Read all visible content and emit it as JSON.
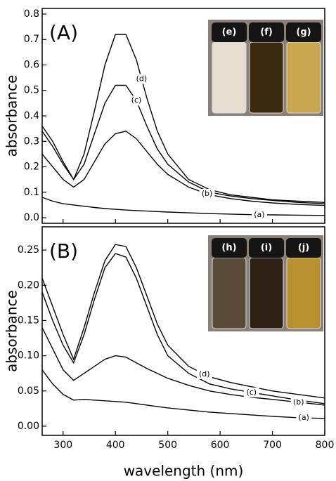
{
  "chart_data": [
    {
      "type": "line",
      "panel_label": "(A)",
      "ylabel": "absorbance",
      "x": [
        260,
        280,
        300,
        320,
        340,
        360,
        380,
        400,
        420,
        440,
        460,
        480,
        500,
        540,
        580,
        620,
        660,
        700,
        750,
        800
      ],
      "xlim": [
        260,
        800
      ],
      "xticks": [
        300,
        400,
        500,
        600,
        700,
        800
      ],
      "ylim": [
        -0.022,
        0.822
      ],
      "yticks": [
        {
          "value": 0,
          "label": "0.0"
        },
        {
          "value": 0.1,
          "label": "0.1"
        },
        {
          "value": 0.2,
          "label": "0.2"
        },
        {
          "value": 0.3,
          "label": "0.3"
        },
        {
          "value": 0.4,
          "label": "0.4"
        },
        {
          "value": 0.5,
          "label": "0.5"
        },
        {
          "value": 0.6,
          "label": "0.6"
        },
        {
          "value": 0.7,
          "label": "0.7"
        },
        {
          "value": 0.8,
          "label": "0.8"
        }
      ],
      "series": [
        {
          "name": "(a)",
          "color": "#000000",
          "values": [
            0.08,
            0.065,
            0.055,
            0.05,
            0.045,
            0.04,
            0.036,
            0.033,
            0.03,
            0.028,
            0.026,
            0.024,
            0.022,
            0.019,
            0.016,
            0.014,
            0.012,
            0.011,
            0.01,
            0.009
          ]
        },
        {
          "name": "(b)",
          "color": "#000000",
          "values": [
            0.25,
            0.2,
            0.15,
            0.12,
            0.15,
            0.22,
            0.29,
            0.33,
            0.34,
            0.31,
            0.26,
            0.21,
            0.17,
            0.12,
            0.09,
            0.075,
            0.065,
            0.058,
            0.052,
            0.048
          ]
        },
        {
          "name": "(c)",
          "color": "#000000",
          "values": [
            0.34,
            0.28,
            0.21,
            0.15,
            0.21,
            0.33,
            0.45,
            0.52,
            0.52,
            0.46,
            0.36,
            0.27,
            0.21,
            0.14,
            0.1,
            0.085,
            0.075,
            0.068,
            0.06,
            0.055
          ]
        },
        {
          "name": "(d)",
          "color": "#000000",
          "values": [
            0.36,
            0.3,
            0.22,
            0.15,
            0.25,
            0.42,
            0.6,
            0.72,
            0.72,
            0.62,
            0.47,
            0.34,
            0.25,
            0.15,
            0.11,
            0.09,
            0.08,
            0.07,
            0.065,
            0.06
          ]
        }
      ],
      "inset_labels": [
        "(e)",
        "(f)",
        "(g)"
      ]
    },
    {
      "type": "line",
      "panel_label": "(B)",
      "ylabel": "absorbance",
      "xlabel": "wavelength (nm)",
      "x": [
        260,
        280,
        300,
        320,
        340,
        360,
        380,
        400,
        420,
        440,
        460,
        480,
        500,
        540,
        580,
        620,
        660,
        700,
        750,
        800
      ],
      "xlim": [
        260,
        800
      ],
      "xticks": [
        300,
        400,
        500,
        600,
        700,
        800
      ],
      "ylim": [
        -0.013,
        0.283
      ],
      "yticks": [
        {
          "value": 0,
          "label": "0.00"
        },
        {
          "value": 0.05,
          "label": "0.05"
        },
        {
          "value": 0.1,
          "label": "0.10"
        },
        {
          "value": 0.15,
          "label": "0.15"
        },
        {
          "value": 0.2,
          "label": "0.20"
        },
        {
          "value": 0.25,
          "label": "0.25"
        }
      ],
      "series": [
        {
          "name": "(a)",
          "color": "#000000",
          "values": [
            0.08,
            0.06,
            0.045,
            0.037,
            0.038,
            0.037,
            0.036,
            0.035,
            0.034,
            0.032,
            0.03,
            0.028,
            0.026,
            0.023,
            0.02,
            0.018,
            0.016,
            0.014,
            0.012,
            0.011
          ]
        },
        {
          "name": "(b)",
          "color": "#000000",
          "values": [
            0.14,
            0.11,
            0.08,
            0.065,
            0.075,
            0.085,
            0.095,
            0.1,
            0.098,
            0.09,
            0.082,
            0.075,
            0.068,
            0.058,
            0.05,
            0.045,
            0.041,
            0.038,
            0.034,
            0.03
          ]
        },
        {
          "name": "(c)",
          "color": "#000000",
          "values": [
            0.19,
            0.15,
            0.115,
            0.09,
            0.13,
            0.18,
            0.225,
            0.245,
            0.24,
            0.21,
            0.17,
            0.13,
            0.1,
            0.075,
            0.06,
            0.053,
            0.048,
            0.043,
            0.037,
            0.032
          ]
        },
        {
          "name": "(d)",
          "color": "#000000",
          "values": [
            0.21,
            0.17,
            0.13,
            0.095,
            0.14,
            0.19,
            0.235,
            0.258,
            0.255,
            0.225,
            0.185,
            0.145,
            0.115,
            0.085,
            0.07,
            0.062,
            0.056,
            0.05,
            0.045,
            0.04
          ]
        }
      ],
      "inset_labels": [
        "(h)",
        "(i)",
        "(j)"
      ]
    }
  ]
}
